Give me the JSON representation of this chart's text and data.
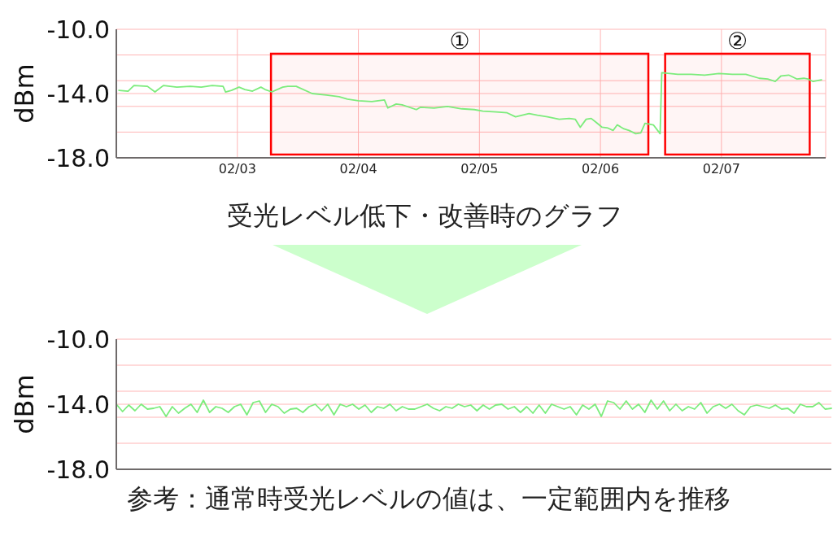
{
  "chart_data": [
    {
      "type": "line",
      "ylabel": "dBm",
      "annotations": [
        "受光レベル低下・改善時のグラフ"
      ],
      "x": [
        "--02-02T00:30",
        "--02-02T02:20",
        "--02-02T03:30",
        "--02-02T06:10",
        "--02-02T07:40",
        "--02-02T09:20",
        "--02-02T12:00",
        "--02-02T14:40",
        "--02-02T16:50",
        "--02-02T19:00",
        "--02-02T21:10",
        "--02-02T21:40",
        "--02-02T22:50",
        "--02-03T00:20",
        "--02-03T01:30",
        "--02-03T03:00",
        "--02-03T04:40",
        "--02-03T05:30",
        "--02-03T06:50",
        "--02-03T09:00",
        "--02-03T10:00",
        "--02-03T11:40",
        "--02-03T14:50",
        "--02-03T17:40",
        "--02-03T20:10",
        "--02-03T21:50",
        "--02-04T00:00",
        "--02-04T02:40",
        "--02-04T05:10",
        "--02-04T05:50",
        "--02-04T07:30",
        "--02-04T08:40",
        "--02-04T11:30",
        "--02-04T12:20",
        "--02-04T15:00",
        "--02-04T17:40",
        "--02-04T20:30",
        "--02-04T23:00",
        "--02-05T00:40",
        "--02-05T03:20",
        "--02-05T05:30",
        "--02-05T07:10",
        "--02-05T09:50",
        "--02-05T11:30",
        "--02-05T13:30",
        "--02-05T15:50",
        "--02-05T17:50",
        "--02-05T19:00",
        "--02-05T20:00",
        "--02-05T21:10",
        "--02-05T22:10",
        "--02-05T23:10",
        "--02-06T00:20",
        "--02-06T01:30",
        "--02-06T02:30",
        "--02-06T03:20",
        "--02-06T04:40",
        "--02-06T05:40",
        "--02-06T07:00",
        "--02-06T08:00",
        "--02-06T08:50",
        "--02-06T10:30",
        "--02-06T11:50",
        "--02-06T12:10",
        "--02-06T15:20",
        "--02-06T18:00",
        "--02-06T20:40",
        "--02-06T23:30",
        "--02-07T02:10",
        "--02-07T04:50",
        "--02-07T07:30",
        "--02-07T09:10",
        "--02-07T10:40",
        "--02-07T11:50",
        "--02-07T13:20",
        "--02-07T15:00",
        "--02-07T16:20",
        "--02-07T17:10",
        "--02-07T18:10",
        "--02-07T19:50"
      ],
      "values": [
        -13.8,
        -13.85,
        -13.5,
        -13.55,
        -13.9,
        -13.5,
        -13.6,
        -13.55,
        -13.6,
        -13.5,
        -13.55,
        -13.9,
        -13.8,
        -13.6,
        -13.75,
        -13.85,
        -13.6,
        -13.75,
        -13.9,
        -13.6,
        -13.55,
        -13.55,
        -14.0,
        -14.1,
        -14.2,
        -14.35,
        -14.45,
        -14.5,
        -14.4,
        -14.9,
        -14.65,
        -14.7,
        -15.0,
        -14.85,
        -14.9,
        -14.8,
        -14.95,
        -15.0,
        -15.1,
        -15.15,
        -15.2,
        -15.45,
        -15.25,
        -15.35,
        -15.45,
        -15.6,
        -15.55,
        -15.6,
        -16.1,
        -15.6,
        -15.55,
        -15.8,
        -16.1,
        -16.15,
        -16.3,
        -15.95,
        -16.2,
        -16.3,
        -16.5,
        -16.45,
        -15.85,
        -15.95,
        -16.5,
        -12.7,
        -12.8,
        -12.8,
        -12.85,
        -12.75,
        -12.8,
        -12.8,
        -13.05,
        -13.1,
        -13.25,
        -12.9,
        -12.85,
        -13.1,
        -13.05,
        -13.1,
        -13.25,
        -13.15
      ],
      "color": "#7cec7c",
      "xlim": [
        "--02-02T00:00",
        "--02-07T20:40"
      ],
      "xticks": [
        {
          "value": "--02-03",
          "label": "02/03"
        },
        {
          "value": "--02-04",
          "label": "02/04"
        },
        {
          "value": "--02-05",
          "label": "02/05"
        },
        {
          "value": "--02-06",
          "label": "02/06"
        },
        {
          "value": "--02-07",
          "label": "02/07"
        }
      ],
      "ylim": [
        -18,
        -10
      ],
      "yticks": [
        {
          "value": -10,
          "label": "-10.0"
        },
        {
          "value": -11.6,
          "label": null
        },
        {
          "value": -13.2,
          "label": null
        },
        {
          "value": -14,
          "label": "-14.0"
        },
        {
          "value": -14.8,
          "label": null
        },
        {
          "value": -16.4,
          "label": null
        },
        {
          "value": -18,
          "label": "-18.0"
        }
      ],
      "grid": true,
      "bands": [
        {
          "axis": "x",
          "from": "--02-03T06:40",
          "to": "--02-06T09:30",
          "label": "①",
          "color": "#ff0000"
        },
        {
          "axis": "x",
          "from": "--02-06T12:50",
          "to": "--02-07T17:30",
          "label": "②",
          "color": "#ff0000"
        }
      ]
    },
    {
      "type": "line",
      "ylabel": "dBm",
      "annotations": [
        "参考：通常時受光レベルの値は、一定範囲内を推移"
      ],
      "categories": [
        null,
        null,
        null,
        null,
        null,
        null,
        null,
        null,
        null,
        null,
        null,
        null,
        null,
        null,
        null,
        null,
        null,
        null,
        null,
        null,
        null,
        null,
        null,
        null,
        null,
        null,
        null,
        null,
        null,
        null,
        null,
        null,
        null,
        null,
        null,
        null,
        null,
        null,
        null,
        null,
        null,
        null,
        null,
        null,
        null,
        null,
        null,
        null,
        null,
        null,
        null,
        null,
        null,
        null,
        null,
        null,
        null,
        null,
        null,
        null,
        null,
        null,
        null,
        null,
        null,
        null,
        null,
        null,
        null,
        null,
        null,
        null,
        null,
        null,
        null,
        null,
        null,
        null,
        null,
        null,
        null,
        null,
        null,
        null,
        null,
        null,
        null,
        null,
        null,
        null,
        null,
        null,
        null,
        null,
        null,
        null,
        null,
        null,
        null,
        null,
        null,
        null,
        null,
        null,
        null,
        null,
        null,
        null,
        null,
        null,
        null,
        null,
        null,
        null,
        null,
        null
      ],
      "values": [
        -14.0,
        -14.45,
        -14.05,
        -14.4,
        -14.0,
        -14.3,
        -14.25,
        -14.15,
        -14.75,
        -14.15,
        -14.55,
        -14.25,
        -14.0,
        -14.5,
        -13.75,
        -14.5,
        -14.15,
        -14.25,
        -14.5,
        -14.15,
        -14.0,
        -14.65,
        -13.9,
        -13.8,
        -14.5,
        -14.0,
        -14.15,
        -14.55,
        -14.3,
        -14.25,
        -14.5,
        -14.15,
        -14.0,
        -14.4,
        -14.0,
        -14.65,
        -14.0,
        -14.15,
        -14.0,
        -14.3,
        -14.05,
        -14.5,
        -14.15,
        -14.25,
        -14.0,
        -14.4,
        -14.15,
        -14.3,
        -14.3,
        -14.15,
        -14.0,
        -14.25,
        -14.4,
        -14.15,
        -14.25,
        -14.0,
        -14.15,
        -14.05,
        -14.4,
        -14.05,
        -14.3,
        -14.05,
        -14.0,
        -14.3,
        -14.15,
        -14.5,
        -14.15,
        -14.55,
        -14.05,
        -14.55,
        -14.0,
        -14.15,
        -14.3,
        -14.15,
        -14.65,
        -14.05,
        -14.3,
        -14.0,
        -14.75,
        -13.8,
        -13.9,
        -14.3,
        -13.8,
        -14.3,
        -14.0,
        -14.5,
        -13.75,
        -14.3,
        -13.8,
        -14.4,
        -14.0,
        -14.4,
        -14.15,
        -14.3,
        -13.9,
        -14.55,
        -14.15,
        -14.0,
        -14.25,
        -14.0,
        -14.4,
        -14.65,
        -14.15,
        -14.05,
        -14.15,
        -14.25,
        -14.05,
        -14.3,
        -14.25,
        -14.55,
        -14.0,
        -14.15,
        -14.15,
        -13.9,
        -14.3,
        -14.25
      ],
      "color": "#7cec7c",
      "ylim": [
        -18,
        -10
      ],
      "yticks": [
        {
          "value": -10,
          "label": "-10.0"
        },
        {
          "value": -11.6,
          "label": null
        },
        {
          "value": -13.2,
          "label": null
        },
        {
          "value": -14,
          "label": "-14.0"
        },
        {
          "value": -14.8,
          "label": null
        },
        {
          "value": -16.4,
          "label": null
        },
        {
          "value": -18,
          "label": "-18.0"
        }
      ],
      "grid": "y",
      "tick_labels": "y"
    }
  ]
}
